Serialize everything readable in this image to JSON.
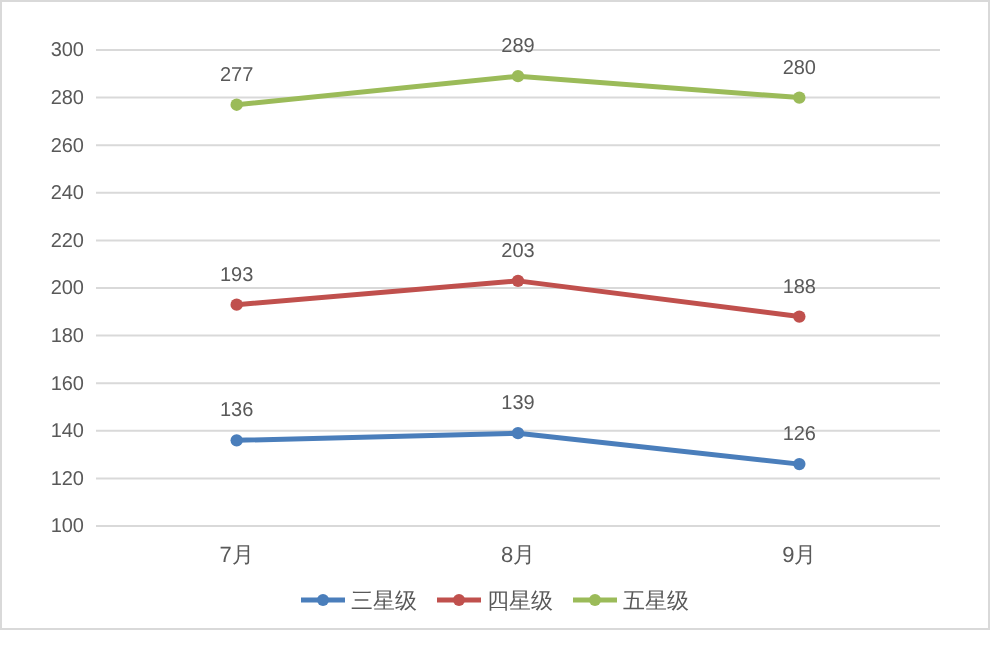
{
  "chart_data": {
    "type": "line",
    "categories": [
      "7月",
      "8月",
      "9月"
    ],
    "series": [
      {
        "name": "三星级",
        "color": "#4a7ebb",
        "values": [
          136,
          139,
          126
        ]
      },
      {
        "name": "四星级",
        "color": "#c0504d",
        "values": [
          193,
          203,
          188
        ]
      },
      {
        "name": "五星级",
        "color": "#9bbb59",
        "values": [
          277,
          289,
          280
        ]
      }
    ],
    "ylim": [
      100,
      300
    ],
    "yticks": [
      100,
      120,
      140,
      160,
      180,
      200,
      220,
      240,
      260,
      280,
      300
    ],
    "grid": "y",
    "legend": "bottom",
    "data_labels": true,
    "marker": "circle",
    "line_style": "solid"
  }
}
